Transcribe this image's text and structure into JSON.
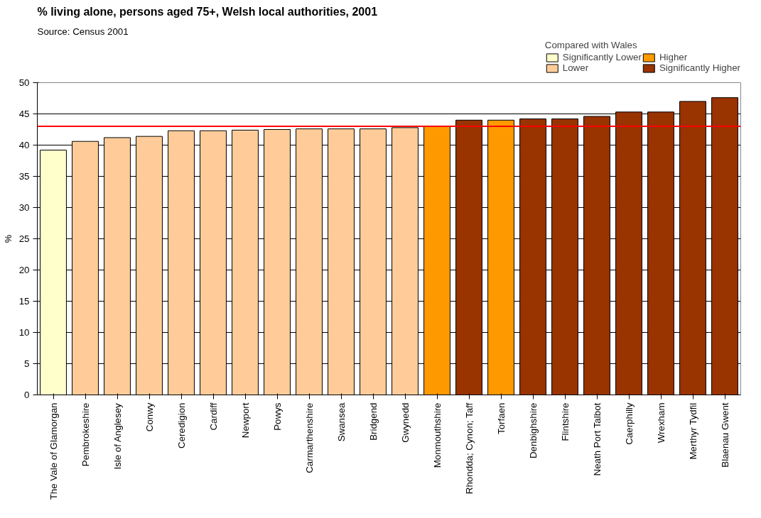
{
  "chart_data": {
    "type": "bar",
    "title": "% living alone, persons aged 75+, Welsh local authorities, 2001",
    "annotations": [
      "Source: Census 2001"
    ],
    "ylabel": "%",
    "legend_title": "Compared with Wales",
    "categories": [
      "The Vale of Glamorgan",
      "Pembrokeshire",
      "Isle of Anglesey",
      "Conwy",
      "Ceredigion",
      "Cardiff",
      "Newport",
      "Powys",
      "Carmarthenshire",
      "Swansea",
      "Bridgend",
      "Gwynedd",
      "Monmouthshire",
      "Rhondda; Cynon; Taff",
      "Torfaen",
      "Denbighshire",
      "Flintshire",
      "Neath Port Talbot",
      "Caerphilly",
      "Wrexham",
      "Merthyr Tydfil",
      "Blaenau Gwent"
    ],
    "series": [
      {
        "name": "Significantly Lower",
        "color": "#ffffcc",
        "values": [
          39.2,
          null,
          null,
          null,
          null,
          null,
          null,
          null,
          null,
          null,
          null,
          null,
          null,
          null,
          null,
          null,
          null,
          null,
          null,
          null,
          null,
          null
        ]
      },
      {
        "name": "Lower",
        "color": "#ffcc99",
        "values": [
          null,
          40.6,
          41.2,
          41.4,
          42.3,
          42.3,
          42.4,
          42.5,
          42.6,
          42.6,
          42.6,
          42.8,
          null,
          null,
          null,
          null,
          null,
          null,
          null,
          null,
          null,
          null
        ]
      },
      {
        "name": "Higher",
        "color": "#ff9900",
        "values": [
          null,
          null,
          null,
          null,
          null,
          null,
          null,
          null,
          null,
          null,
          null,
          null,
          43.0,
          null,
          44.0,
          null,
          null,
          null,
          null,
          null,
          null,
          null
        ]
      },
      {
        "name": "Significantly Higher",
        "color": "#993300",
        "values": [
          null,
          null,
          null,
          null,
          null,
          null,
          null,
          null,
          null,
          null,
          null,
          null,
          null,
          44.0,
          null,
          44.2,
          44.2,
          44.6,
          45.3,
          45.3,
          47.0,
          47.6
        ]
      }
    ],
    "ref_lines": [
      {
        "axis": "y",
        "value": 43.0,
        "color": "#ff0000"
      }
    ],
    "ylim": [
      0,
      50
    ],
    "yticks": [
      0,
      5,
      10,
      15,
      20,
      25,
      30,
      35,
      40,
      45,
      50
    ],
    "grid": "y",
    "legend": "top right"
  }
}
